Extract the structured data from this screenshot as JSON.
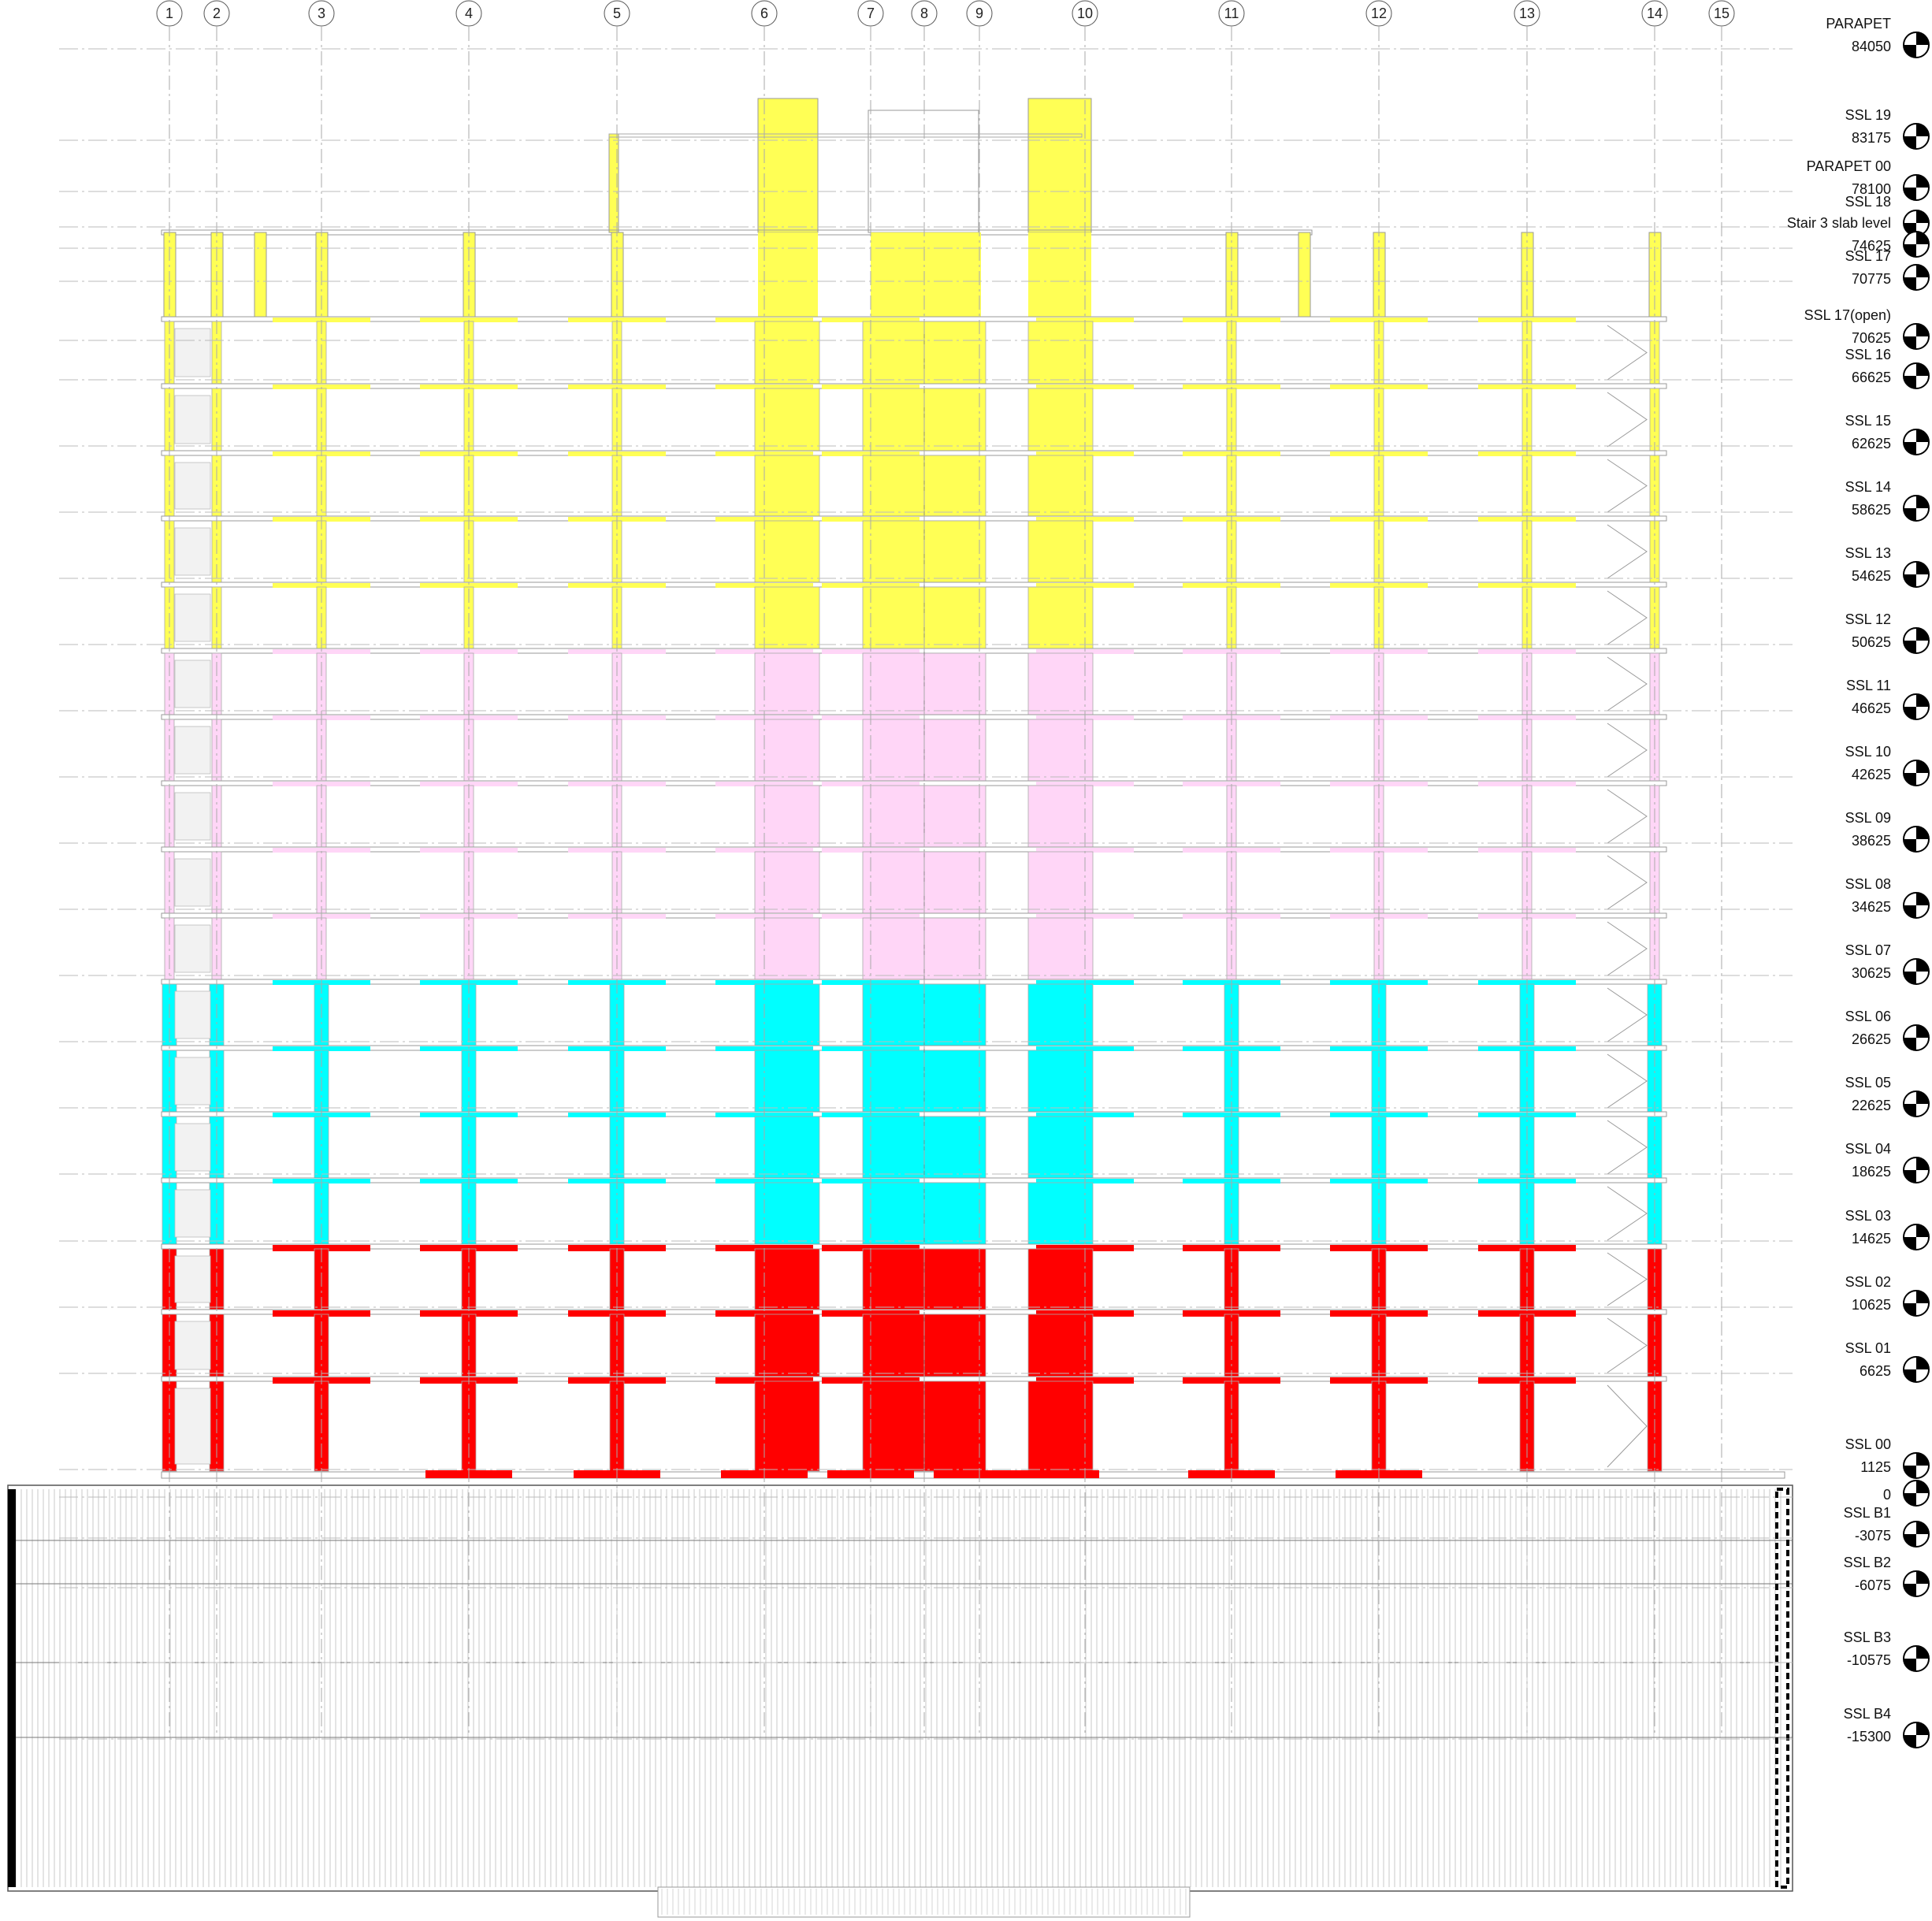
{
  "grid_labels": [
    "1",
    "2",
    "3",
    "4",
    "5",
    "6",
    "7",
    "8",
    "9",
    "10",
    "11",
    "12",
    "13",
    "14",
    "15"
  ],
  "levels": [
    {
      "name": "PARAPET",
      "value": "84050"
    },
    {
      "name": "SSL 19",
      "value": "83175"
    },
    {
      "name": "PARAPET 00",
      "value": "78100"
    },
    {
      "name": "SSL 18",
      "value": ""
    },
    {
      "name": "Stair 3 slab level",
      "value": "74625"
    },
    {
      "name": "SSL 17",
      "value": "70775"
    },
    {
      "name": "SSL 17(open)",
      "value": "70625"
    },
    {
      "name": "SSL 16",
      "value": "66625"
    },
    {
      "name": "SSL 15",
      "value": "62625"
    },
    {
      "name": "SSL 14",
      "value": "58625"
    },
    {
      "name": "SSL 13",
      "value": "54625"
    },
    {
      "name": "SSL 12",
      "value": "50625"
    },
    {
      "name": "SSL 11",
      "value": "46625"
    },
    {
      "name": "SSL 10",
      "value": "42625"
    },
    {
      "name": "SSL 09",
      "value": "38625"
    },
    {
      "name": "SSL 08",
      "value": "34625"
    },
    {
      "name": "SSL 07",
      "value": "30625"
    },
    {
      "name": "SSL 06",
      "value": "26625"
    },
    {
      "name": "SSL 05",
      "value": "22625"
    },
    {
      "name": "SSL 04",
      "value": "18625"
    },
    {
      "name": "SSL 03",
      "value": "14625"
    },
    {
      "name": "SSL 02",
      "value": "10625"
    },
    {
      "name": "SSL 01",
      "value": "6625"
    },
    {
      "name": "SSL 00",
      "value": "1125"
    },
    {
      "name": "",
      "value": "0"
    },
    {
      "name": "SSL B1",
      "value": "-3075"
    },
    {
      "name": "SSL B2",
      "value": "-6075"
    },
    {
      "name": "SSL B3",
      "value": "-10575"
    },
    {
      "name": "SSL B4",
      "value": "-15300"
    }
  ],
  "zone_colors": {
    "upper": "#ffff55",
    "middle": "#ffd6f7",
    "lower_middle": "#00ffff",
    "podium": "#ff0000"
  }
}
